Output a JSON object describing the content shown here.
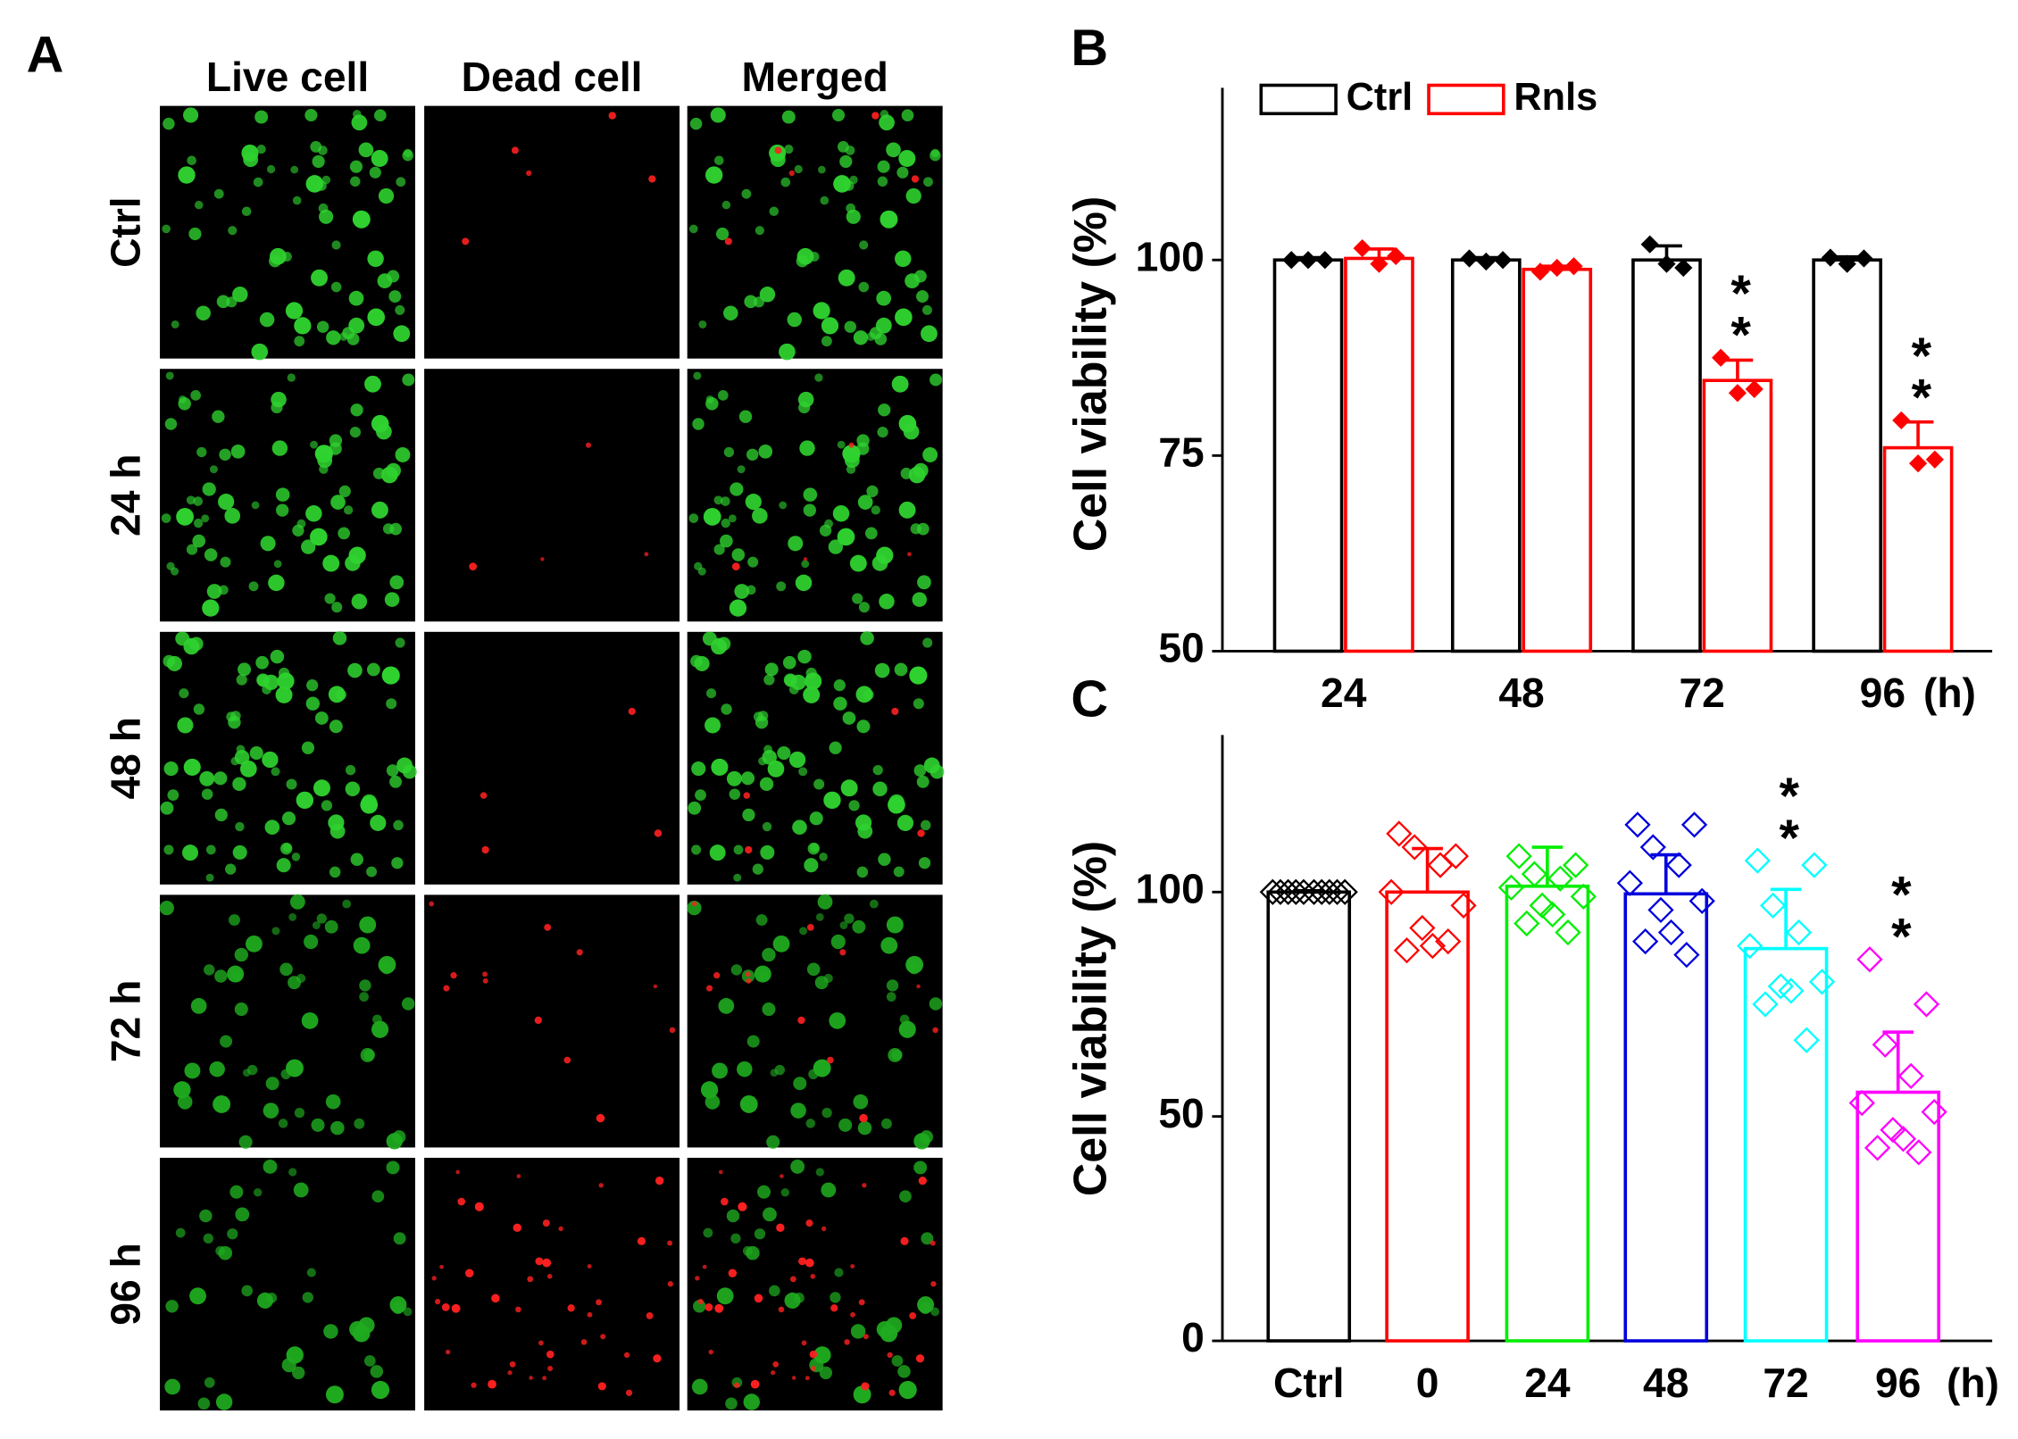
{
  "panel_a": {
    "label": "A",
    "columns": [
      "Live cell",
      "Dead cell",
      "Merged"
    ],
    "rows": [
      "Ctrl",
      "24 h",
      "48 h",
      "72 h",
      "96 h"
    ]
  },
  "chart_data": [
    {
      "type": "bar",
      "panel_label": "B",
      "ylabel": "Cell viability (%)",
      "xlabel": "(h)",
      "categories": [
        "24",
        "48",
        "72",
        "96"
      ],
      "ylim": [
        50,
        122
      ],
      "yticks": [
        50,
        75,
        100
      ],
      "grid": false,
      "legend": "top-left",
      "series": [
        {
          "name": "Ctrl",
          "color": "#000000",
          "values": [
            100,
            100,
            100,
            100
          ],
          "errors": [
            0.3,
            0.3,
            1.8,
            0.4
          ],
          "points": [
            [
              100,
              100,
              100
            ],
            [
              100.2,
              99.8,
              100
            ],
            [
              102,
              99.5,
              99
            ],
            [
              100.3,
              99.5,
              100.2
            ]
          ],
          "significance": [
            null,
            null,
            null,
            null
          ]
        },
        {
          "name": "Rnls",
          "color": "#ff0000",
          "values": [
            100.2,
            98.8,
            84.6,
            76
          ],
          "errors": [
            1.2,
            0.4,
            2.6,
            3.3
          ],
          "points": [
            [
              101.5,
              99.5,
              100.5
            ],
            [
              98.5,
              99,
              99.2
            ],
            [
              87.5,
              83,
              83.5
            ],
            [
              79.5,
              74,
              74.5
            ]
          ],
          "significance": [
            null,
            null,
            "**",
            "**"
          ]
        }
      ]
    },
    {
      "type": "bar",
      "panel_label": "C",
      "ylabel": "Cell viability (%)",
      "xlabel": "(h)",
      "categories": [
        "Ctrl",
        "0",
        "24",
        "48",
        "72",
        "96"
      ],
      "ylim": [
        0,
        135
      ],
      "yticks": [
        0,
        50,
        100
      ],
      "grid": false,
      "colors": [
        "#000000",
        "#ff0000",
        "#00ee00",
        "#0000dd",
        "#00ffff",
        "#ff00ff"
      ],
      "values": [
        100,
        100,
        101.3,
        99.6,
        87.4,
        55.4
      ],
      "errors": [
        0.3,
        9.7,
        8.7,
        8.7,
        13.2,
        13.4
      ],
      "points": [
        [
          100,
          100,
          100,
          100,
          100,
          100,
          100,
          100,
          100,
          100
        ],
        [
          113,
          108,
          110,
          106,
          100,
          97,
          92,
          88,
          87,
          89
        ],
        [
          108,
          106,
          104,
          103,
          101,
          99,
          97,
          95,
          93,
          91
        ],
        [
          115,
          115,
          110,
          106,
          102,
          98,
          96,
          91,
          89,
          86
        ],
        [
          107,
          106,
          97,
          91,
          88,
          80,
          79,
          78,
          75,
          67
        ],
        [
          85,
          75,
          66,
          59,
          53,
          51,
          47,
          45,
          43,
          42
        ]
      ],
      "significance": [
        null,
        null,
        null,
        null,
        "**",
        "**"
      ]
    }
  ]
}
